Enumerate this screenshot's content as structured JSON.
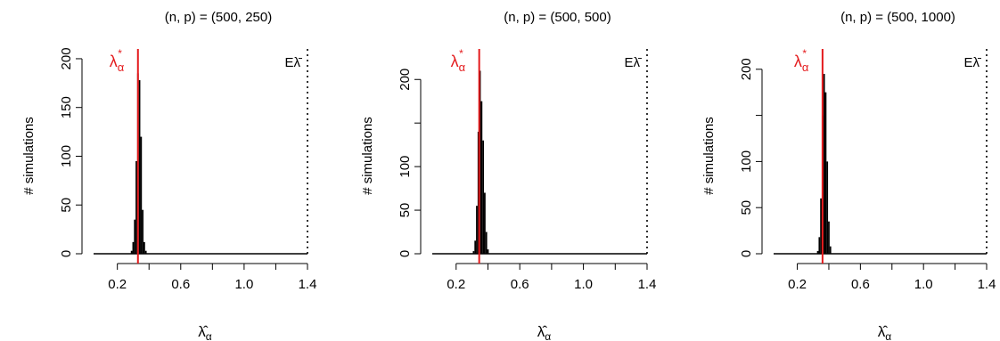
{
  "chart_data": [
    {
      "type": "bar",
      "title": "(n, p) = (500, 250)",
      "xlabel": "λ̂α",
      "ylabel": "# simulations",
      "xlim": [
        0.05,
        1.4
      ],
      "ylim": [
        0,
        210
      ],
      "x_ticks": [
        "0.2",
        "0.6",
        "1.0",
        "1.4"
      ],
      "x_tick_values": [
        0.2,
        0.6,
        1.0,
        1.4
      ],
      "y_ticks": [
        "0",
        "50",
        "100",
        "150",
        "200"
      ],
      "y_tick_values": [
        0,
        50,
        100,
        150,
        200
      ],
      "bins": [
        {
          "x": 0.29,
          "count": 3
        },
        {
          "x": 0.3,
          "count": 12
        },
        {
          "x": 0.31,
          "count": 35
        },
        {
          "x": 0.32,
          "count": 95
        },
        {
          "x": 0.33,
          "count": 185
        },
        {
          "x": 0.34,
          "count": 178
        },
        {
          "x": 0.35,
          "count": 120
        },
        {
          "x": 0.36,
          "count": 45
        },
        {
          "x": 0.37,
          "count": 12
        },
        {
          "x": 0.38,
          "count": 3
        }
      ],
      "bin_width": 0.01,
      "vlines": [
        {
          "x": 0.33,
          "label_main": "λ",
          "label_sub": "α",
          "label_sup": "*",
          "color": "#e41a1c",
          "style": "solid"
        },
        {
          "x": 1.4,
          "label_main": "Eλ̄",
          "color": "#000000",
          "style": "dotted"
        }
      ]
    },
    {
      "type": "bar",
      "title": "(n, p) = (500, 500)",
      "xlabel": "λ̂α",
      "ylabel": "# simulations",
      "xlim": [
        0.05,
        1.4
      ],
      "ylim": [
        0,
        235
      ],
      "x_ticks": [
        "0.2",
        "0.6",
        "1.0",
        "1.4"
      ],
      "x_tick_values": [
        0.2,
        0.6,
        1.0,
        1.4
      ],
      "y_ticks": [
        "0",
        "50",
        "100",
        "200"
      ],
      "y_tick_values": [
        0,
        50,
        100,
        200
      ],
      "bins": [
        {
          "x": 0.31,
          "count": 3
        },
        {
          "x": 0.32,
          "count": 15
        },
        {
          "x": 0.33,
          "count": 55
        },
        {
          "x": 0.34,
          "count": 140
        },
        {
          "x": 0.35,
          "count": 210
        },
        {
          "x": 0.36,
          "count": 175
        },
        {
          "x": 0.37,
          "count": 130
        },
        {
          "x": 0.38,
          "count": 70
        },
        {
          "x": 0.39,
          "count": 25
        },
        {
          "x": 0.4,
          "count": 5
        }
      ],
      "bin_width": 0.01,
      "vlines": [
        {
          "x": 0.345,
          "label_main": "λ",
          "label_sub": "α",
          "label_sup": "*",
          "color": "#e41a1c",
          "style": "solid"
        },
        {
          "x": 1.4,
          "label_main": "Eλ̄",
          "color": "#000000",
          "style": "dotted"
        }
      ]
    },
    {
      "type": "bar",
      "title": "(n, p) = (500, 1000)",
      "xlabel": "λ̂α",
      "ylabel": "# simulations",
      "xlim": [
        0.05,
        1.4
      ],
      "ylim": [
        0,
        222
      ],
      "x_ticks": [
        "0.2",
        "0.6",
        "1.0",
        "1.4"
      ],
      "x_tick_values": [
        0.2,
        0.6,
        1.0,
        1.4
      ],
      "y_ticks": [
        "0",
        "50",
        "100",
        "200"
      ],
      "y_tick_values": [
        0,
        50,
        100,
        200
      ],
      "bins": [
        {
          "x": 0.33,
          "count": 3
        },
        {
          "x": 0.34,
          "count": 18
        },
        {
          "x": 0.35,
          "count": 60
        },
        {
          "x": 0.36,
          "count": 150
        },
        {
          "x": 0.37,
          "count": 195
        },
        {
          "x": 0.38,
          "count": 175
        },
        {
          "x": 0.39,
          "count": 100
        },
        {
          "x": 0.4,
          "count": 35
        },
        {
          "x": 0.41,
          "count": 8
        }
      ],
      "bin_width": 0.01,
      "vlines": [
        {
          "x": 0.36,
          "label_main": "λ",
          "label_sub": "α",
          "label_sup": "*",
          "color": "#e41a1c",
          "style": "solid"
        },
        {
          "x": 1.4,
          "label_main": "Eλ̄",
          "color": "#000000",
          "style": "dotted"
        }
      ]
    }
  ],
  "colors": {
    "bar": "#000000",
    "critical_line": "#e41a1c",
    "expected_line": "#000000"
  }
}
